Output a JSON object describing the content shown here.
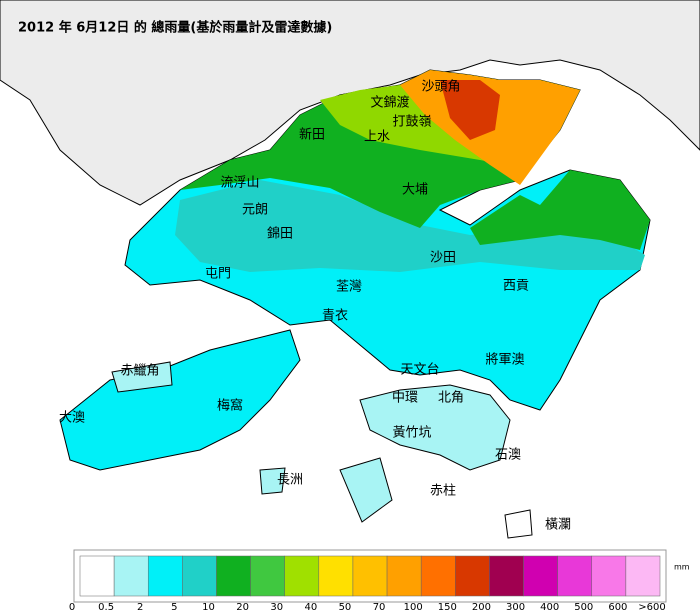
{
  "title": "2012 年 6月12日 的 總雨量(基於雨量計及雷達數據)",
  "places": [
    "沙頭角",
    "文錦渡",
    "打鼓嶺",
    "上水",
    "新田",
    "流浮山",
    "大埔",
    "元朗",
    "錦田",
    "沙田",
    "屯門",
    "荃灣",
    "西貢",
    "青衣",
    "赤鱲角",
    "將軍澳",
    "天文台",
    "中環",
    "北角",
    "大澳",
    "梅窩",
    "黃竹坑",
    "石澳",
    "長洲",
    "赤柱",
    "橫瀾"
  ],
  "legend": {
    "unit": "mm",
    "colors": [
      "#ffffff",
      "#a8f4f4",
      "#00f0f8",
      "#20d0c8",
      "#10b020",
      "#40c840",
      "#a0e000",
      "#ffe000",
      "#ffc000",
      "#ffa000",
      "#ff7000",
      "#d83800",
      "#a00050",
      "#d000b0",
      "#e838d8",
      "#f878e8",
      "#fcb8f4"
    ],
    "ticks": [
      0,
      0.5,
      2,
      5,
      10,
      20,
      30,
      40,
      50,
      70,
      100,
      150,
      200,
      300,
      400,
      500,
      600,
      {
        "value": 600,
        "label": ">600"
      }
    ]
  }
}
